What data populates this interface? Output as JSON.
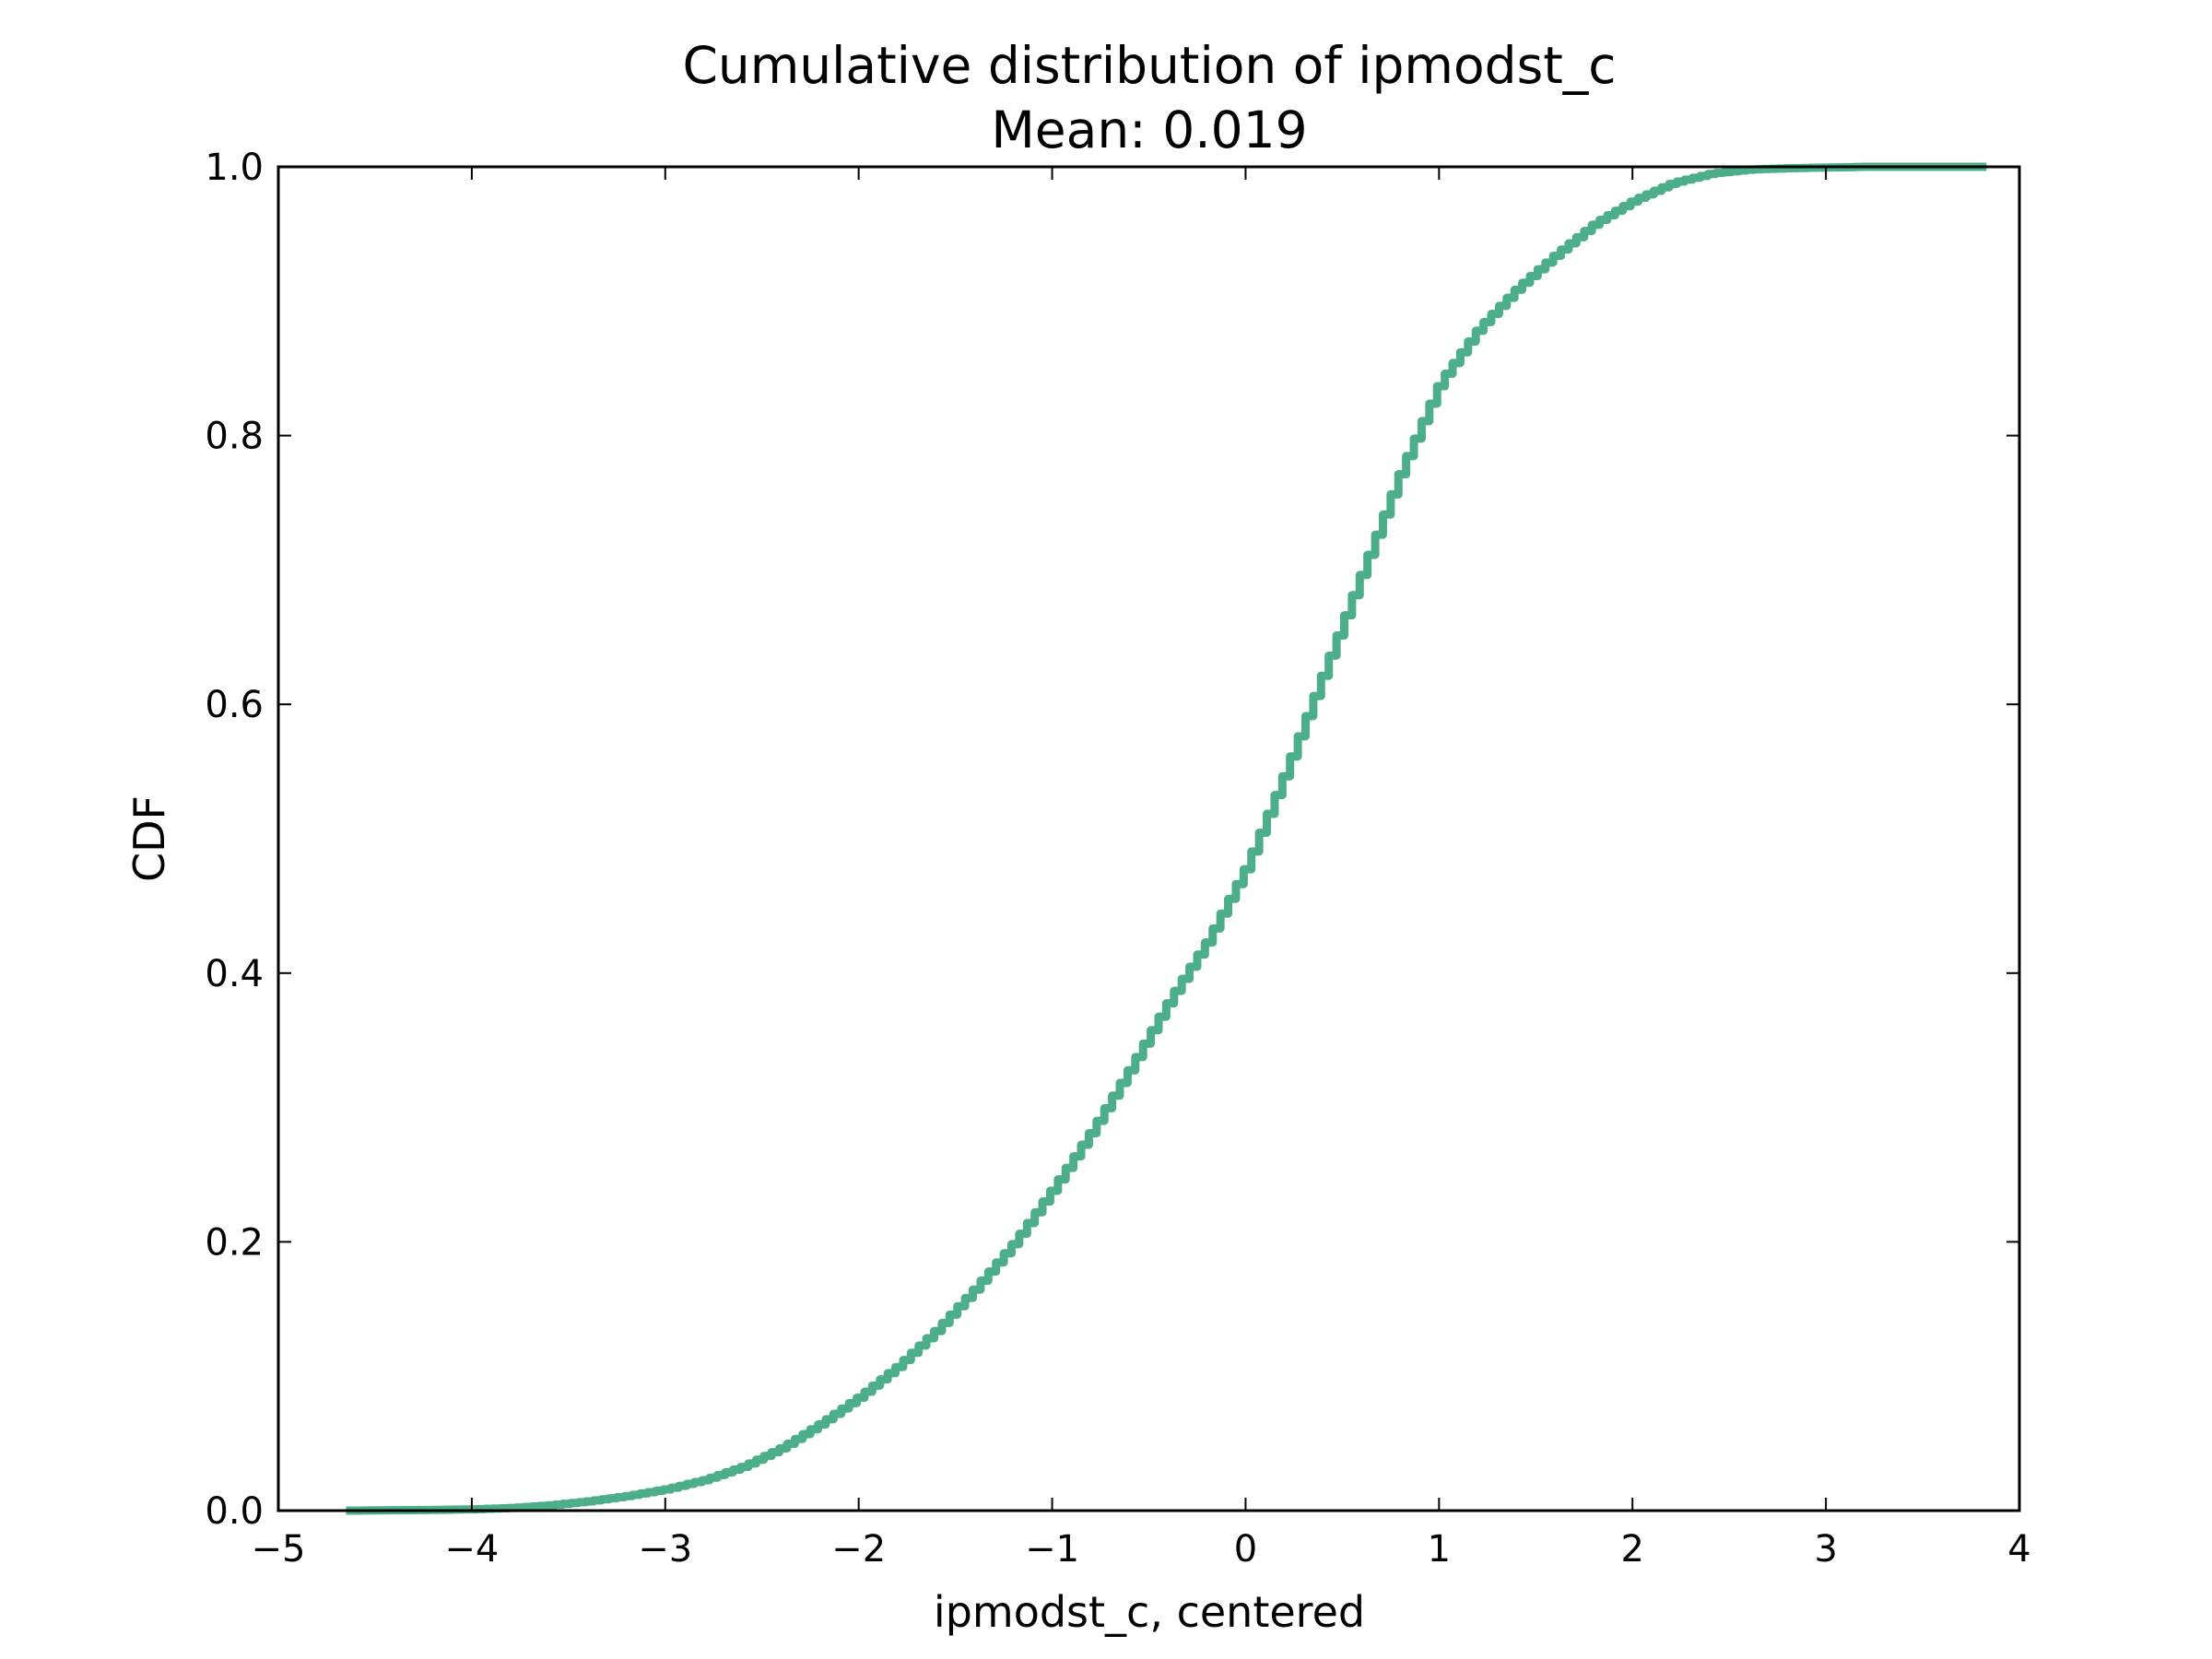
{
  "chart_data": {
    "type": "line",
    "style": "step",
    "title": "Cumulative distribution of ipmodst_c",
    "subtitle": "Mean: 0.019",
    "xlabel": "ipmodst_c, centered",
    "ylabel": "CDF",
    "xlim": [
      -5,
      4
    ],
    "ylim": [
      0,
      1
    ],
    "x_ticks": [
      -5,
      -4,
      -3,
      -2,
      -1,
      0,
      1,
      2,
      3,
      4
    ],
    "x_tick_labels": [
      "−5",
      "−4",
      "−3",
      "−2",
      "−1",
      "0",
      "1",
      "2",
      "3",
      "4"
    ],
    "y_ticks": [
      0,
      0.2,
      0.4,
      0.6,
      0.8,
      1.0
    ],
    "y_tick_labels": [
      "0.0",
      "0.2",
      "0.4",
      "0.6",
      "0.8",
      "1.0"
    ],
    "grid": false,
    "legend": "none",
    "line_color": "#4daf8a",
    "series": [
      {
        "x": [
          -4.65,
          -4.2,
          -4.0,
          -3.8,
          -3.6,
          -3.4,
          -3.2,
          -3.0,
          -2.8,
          -2.6,
          -2.4,
          -2.2,
          -2.0,
          -1.8,
          -1.6,
          -1.4,
          -1.2,
          -1.0,
          -0.8,
          -0.6,
          -0.4,
          -0.2,
          0.0,
          0.2,
          0.4,
          0.6,
          0.8,
          1.0,
          1.2,
          1.4,
          1.6,
          1.8,
          2.0,
          2.2,
          2.4,
          2.6,
          2.8,
          3.2,
          3.85
        ],
        "y": [
          0.0,
          0.0005,
          0.001,
          0.002,
          0.004,
          0.007,
          0.011,
          0.016,
          0.023,
          0.033,
          0.047,
          0.065,
          0.085,
          0.108,
          0.135,
          0.166,
          0.2,
          0.24,
          0.283,
          0.33,
          0.38,
          0.425,
          0.48,
          0.55,
          0.625,
          0.7,
          0.775,
          0.84,
          0.88,
          0.91,
          0.935,
          0.958,
          0.975,
          0.988,
          0.995,
          0.998,
          0.999,
          1.0,
          1.0
        ]
      }
    ]
  }
}
